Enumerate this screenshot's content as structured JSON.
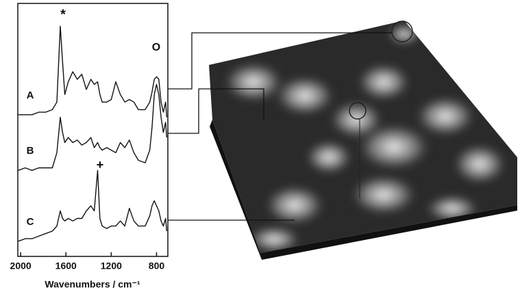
{
  "chart_data": {
    "type": "line",
    "x_label": "Wavenumbers / cm⁻¹",
    "x": [
      2020,
      1960,
      1900,
      1840,
      1780,
      1720,
      1680,
      1650,
      1630,
      1610,
      1580,
      1540,
      1500,
      1460,
      1420,
      1380,
      1350,
      1320,
      1300,
      1280,
      1240,
      1200,
      1160,
      1120,
      1080,
      1040,
      1000,
      960,
      900,
      860,
      840,
      820,
      800,
      780,
      760,
      740,
      720,
      710
    ],
    "xlim": [
      2025,
      700
    ],
    "xticks": [
      2000,
      1600,
      1200,
      800
    ],
    "ylim": [
      0,
      100
    ],
    "series": [
      {
        "name": "A",
        "color": "#111111",
        "values": [
          56,
          56,
          56,
          57,
          57,
          58,
          61,
          91,
          77,
          64,
          69,
          73,
          70,
          72,
          66,
          70,
          68,
          69,
          64,
          61,
          61,
          62,
          69,
          64,
          61,
          62,
          61,
          58,
          58,
          61,
          65,
          70,
          71,
          70,
          61,
          57,
          61,
          55
        ]
      },
      {
        "name": "B",
        "color": "#111111",
        "values": [
          34,
          35,
          34,
          35,
          35,
          35,
          41,
          55,
          49,
          45,
          47,
          45,
          46,
          44,
          45,
          47,
          43,
          45,
          43,
          42,
          43,
          42,
          41,
          45,
          43,
          46,
          41,
          38,
          37,
          42,
          51,
          64,
          68,
          64,
          55,
          49,
          53,
          47
        ]
      },
      {
        "name": "C",
        "color": "#111111",
        "values": [
          6,
          7,
          7,
          8,
          9,
          10,
          12,
          18,
          15,
          14,
          15,
          14,
          15,
          15,
          18,
          20,
          18,
          34,
          15,
          12,
          11,
          12,
          12,
          14,
          12,
          19,
          14,
          12,
          12,
          16,
          20,
          22,
          20,
          18,
          14,
          12,
          15,
          10
        ]
      }
    ],
    "annotations": [
      "*",
      "O",
      "+"
    ]
  }
}
